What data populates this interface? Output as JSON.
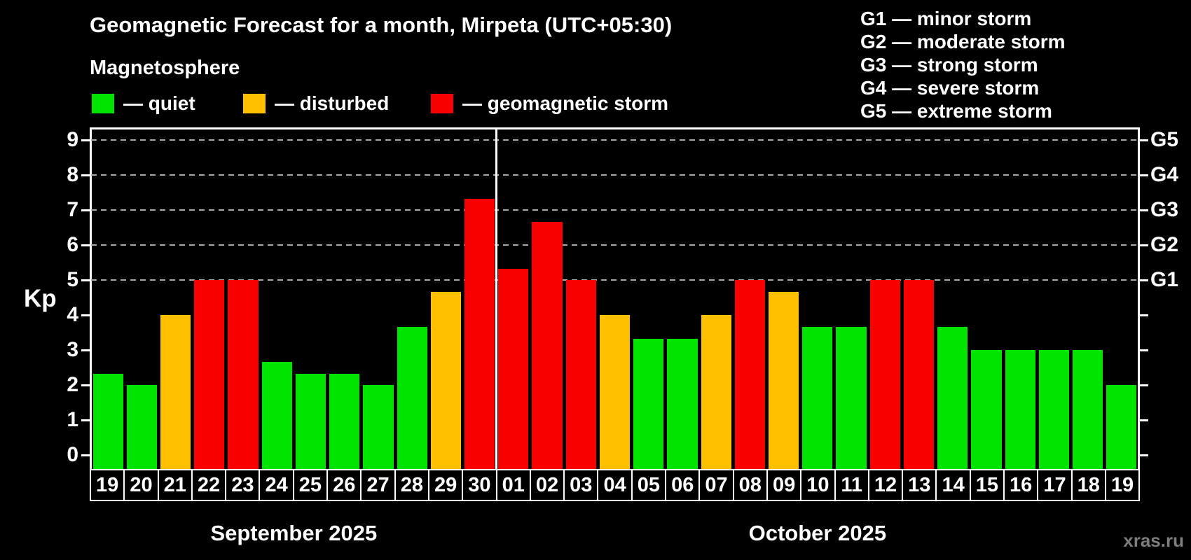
{
  "title": "Geomagnetic Forecast for a month, Mirpeta (UTC+05:30)",
  "subtitle": "Magnetosphere",
  "legend": {
    "items": [
      {
        "id": "quiet",
        "label": "— quiet",
        "color": "#00e400"
      },
      {
        "id": "disturbed",
        "label": "— disturbed",
        "color": "#ffc000"
      },
      {
        "id": "storm",
        "label": "— geomagnetic storm",
        "color": "#fa0000"
      }
    ]
  },
  "g_legend": [
    "G1 — minor storm",
    "G2 — moderate storm",
    "G3 — strong storm",
    "G4 — severe storm",
    "G5 — extreme storm"
  ],
  "watermark": "xras.ru",
  "chart_data": {
    "type": "bar",
    "title": "Geomagnetic Forecast for a month, Mirpeta (UTC+05:30)",
    "ylabel": "Kp",
    "ylim": [
      -0.4,
      9.4
    ],
    "yticks": [
      0,
      1,
      2,
      3,
      4,
      5,
      6,
      7,
      8,
      9
    ],
    "grid": "dashed horizontal at Kp 5-9 only",
    "legend_position": "top-left",
    "g_levels": [
      {
        "kp": 5,
        "label": "G1"
      },
      {
        "kp": 6,
        "label": "G2"
      },
      {
        "kp": 7,
        "label": "G3"
      },
      {
        "kp": 8,
        "label": "G4"
      },
      {
        "kp": 9,
        "label": "G5"
      }
    ],
    "months": [
      {
        "label": "September 2025",
        "days": 12
      },
      {
        "label": "October 2025",
        "days": 19
      }
    ],
    "categories": [
      "19",
      "20",
      "21",
      "22",
      "23",
      "24",
      "25",
      "26",
      "27",
      "28",
      "29",
      "30",
      "01",
      "02",
      "03",
      "04",
      "05",
      "06",
      "07",
      "08",
      "09",
      "10",
      "11",
      "12",
      "13",
      "14",
      "15",
      "16",
      "17",
      "18",
      "19"
    ],
    "values": [
      2.33,
      2.0,
      4.0,
      5.0,
      5.0,
      2.67,
      2.33,
      2.33,
      2.0,
      3.67,
      4.67,
      7.33,
      5.33,
      6.67,
      5.0,
      4.0,
      3.33,
      3.33,
      4.0,
      5.0,
      4.67,
      3.67,
      3.67,
      5.0,
      5.0,
      3.67,
      3.0,
      3.0,
      3.0,
      3.0,
      2.0
    ],
    "status": [
      "quiet",
      "quiet",
      "disturbed",
      "storm",
      "storm",
      "quiet",
      "quiet",
      "quiet",
      "quiet",
      "quiet",
      "disturbed",
      "storm",
      "storm",
      "storm",
      "storm",
      "disturbed",
      "quiet",
      "quiet",
      "disturbed",
      "storm",
      "disturbed",
      "quiet",
      "quiet",
      "storm",
      "storm",
      "quiet",
      "quiet",
      "quiet",
      "quiet",
      "quiet",
      "quiet"
    ],
    "colors": {
      "quiet": "#00e400",
      "disturbed": "#ffc000",
      "storm": "#fa0000"
    }
  }
}
